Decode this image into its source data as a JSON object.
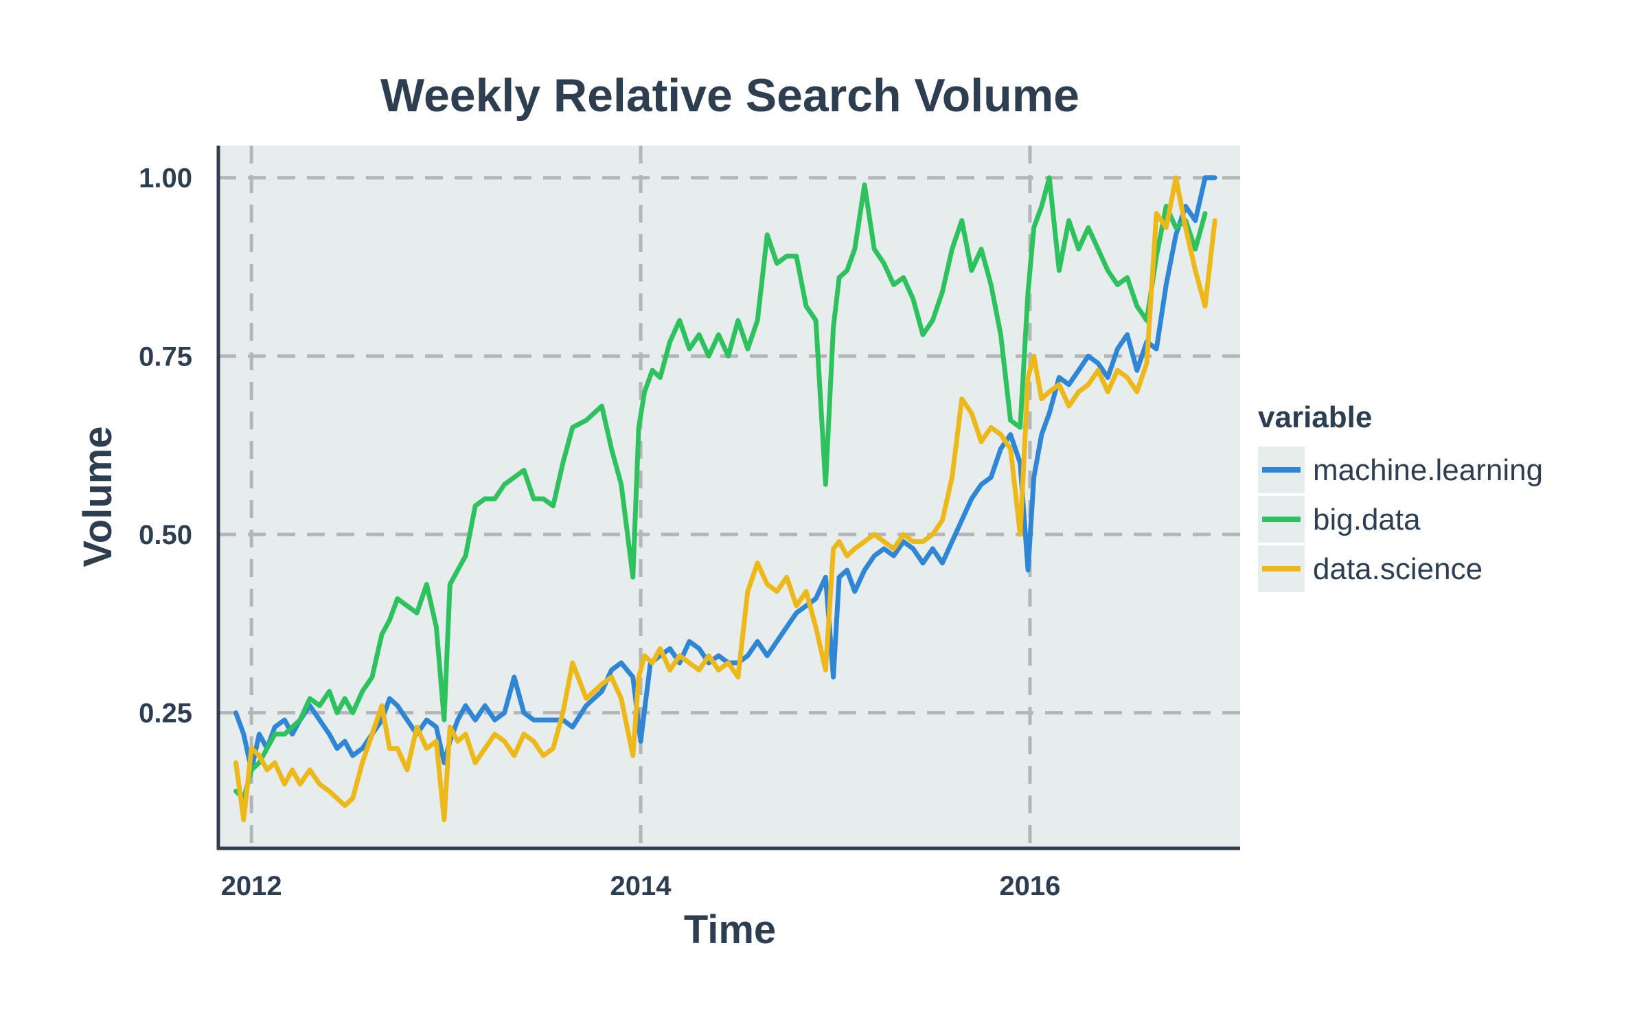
{
  "chart_data": {
    "type": "line",
    "title": "Weekly Relative Search Volume",
    "xlabel": "Time",
    "ylabel": "Volume",
    "xlim": [
      2011.83,
      2017.08
    ],
    "ylim": [
      0.06,
      1.045
    ],
    "x_ticks": [
      {
        "value": 2012,
        "label": "2012"
      },
      {
        "value": 2014,
        "label": "2014"
      },
      {
        "value": 2016,
        "label": "2016"
      }
    ],
    "y_ticks": [
      {
        "value": 0.25,
        "label": "0.25"
      },
      {
        "value": 0.5,
        "label": "0.50"
      },
      {
        "value": 0.75,
        "label": "0.75"
      },
      {
        "value": 1.0,
        "label": "1.00"
      }
    ],
    "grid": true,
    "legend": {
      "title": "variable",
      "position": "right"
    },
    "background": "#e7ecec",
    "series": [
      {
        "name": "machine.learning",
        "color": "#2e86d4",
        "x": [
          2011.92,
          2011.96,
          2012.0,
          2012.04,
          2012.08,
          2012.12,
          2012.17,
          2012.21,
          2012.25,
          2012.3,
          2012.35,
          2012.4,
          2012.44,
          2012.48,
          2012.52,
          2012.57,
          2012.62,
          2012.67,
          2012.71,
          2012.75,
          2012.8,
          2012.85,
          2012.9,
          2012.95,
          2012.99,
          2013.02,
          2013.06,
          2013.1,
          2013.15,
          2013.2,
          2013.25,
          2013.3,
          2013.35,
          2013.4,
          2013.45,
          2013.5,
          2013.55,
          2013.6,
          2013.65,
          2013.72,
          2013.8,
          2013.85,
          2013.9,
          2013.96,
          2014.0,
          2014.05,
          2014.1,
          2014.15,
          2014.2,
          2014.25,
          2014.3,
          2014.35,
          2014.4,
          2014.45,
          2014.5,
          2014.55,
          2014.6,
          2014.65,
          2014.7,
          2014.75,
          2014.8,
          2014.85,
          2014.9,
          2014.95,
          2014.99,
          2015.02,
          2015.06,
          2015.1,
          2015.15,
          2015.2,
          2015.25,
          2015.3,
          2015.35,
          2015.4,
          2015.45,
          2015.5,
          2015.55,
          2015.6,
          2015.65,
          2015.7,
          2015.75,
          2015.8,
          2015.85,
          2015.9,
          2015.95,
          2015.99,
          2016.02,
          2016.06,
          2016.1,
          2016.15,
          2016.2,
          2016.25,
          2016.3,
          2016.35,
          2016.4,
          2016.45,
          2016.5,
          2016.55,
          2016.6,
          2016.65,
          2016.7,
          2016.75,
          2016.8,
          2016.85,
          2016.9,
          2016.95
        ],
        "values": [
          0.25,
          0.22,
          0.17,
          0.22,
          0.2,
          0.23,
          0.24,
          0.22,
          0.24,
          0.26,
          0.24,
          0.22,
          0.2,
          0.21,
          0.19,
          0.2,
          0.22,
          0.24,
          0.27,
          0.26,
          0.24,
          0.22,
          0.24,
          0.23,
          0.18,
          0.21,
          0.24,
          0.26,
          0.24,
          0.26,
          0.24,
          0.25,
          0.3,
          0.25,
          0.24,
          0.24,
          0.24,
          0.24,
          0.23,
          0.26,
          0.28,
          0.31,
          0.32,
          0.3,
          0.21,
          0.32,
          0.33,
          0.34,
          0.32,
          0.35,
          0.34,
          0.32,
          0.33,
          0.32,
          0.32,
          0.33,
          0.35,
          0.33,
          0.35,
          0.37,
          0.39,
          0.4,
          0.41,
          0.44,
          0.3,
          0.44,
          0.45,
          0.42,
          0.45,
          0.47,
          0.48,
          0.47,
          0.49,
          0.48,
          0.46,
          0.48,
          0.46,
          0.49,
          0.52,
          0.55,
          0.57,
          0.58,
          0.62,
          0.64,
          0.6,
          0.45,
          0.58,
          0.64,
          0.67,
          0.72,
          0.71,
          0.73,
          0.75,
          0.74,
          0.72,
          0.76,
          0.78,
          0.73,
          0.77,
          0.76,
          0.85,
          0.92,
          0.96,
          0.94,
          1.0,
          1.0
        ]
      },
      {
        "name": "big.data",
        "color": "#2ec25e",
        "x": [
          2011.92,
          2011.96,
          2012.0,
          2012.04,
          2012.08,
          2012.12,
          2012.17,
          2012.21,
          2012.25,
          2012.3,
          2012.35,
          2012.4,
          2012.44,
          2012.48,
          2012.52,
          2012.57,
          2012.62,
          2012.67,
          2012.71,
          2012.75,
          2012.8,
          2012.85,
          2012.9,
          2012.95,
          2012.99,
          2013.02,
          2013.06,
          2013.1,
          2013.15,
          2013.2,
          2013.25,
          2013.3,
          2013.35,
          2013.4,
          2013.45,
          2013.5,
          2013.55,
          2013.6,
          2013.65,
          2013.72,
          2013.8,
          2013.85,
          2013.9,
          2013.96,
          2013.99,
          2014.02,
          2014.06,
          2014.1,
          2014.15,
          2014.2,
          2014.25,
          2014.3,
          2014.35,
          2014.4,
          2014.45,
          2014.5,
          2014.55,
          2014.6,
          2014.65,
          2014.7,
          2014.75,
          2014.8,
          2014.85,
          2014.9,
          2014.95,
          2014.99,
          2015.02,
          2015.06,
          2015.1,
          2015.15,
          2015.2,
          2015.25,
          2015.3,
          2015.35,
          2015.4,
          2015.45,
          2015.5,
          2015.55,
          2015.6,
          2015.65,
          2015.7,
          2015.75,
          2015.8,
          2015.85,
          2015.9,
          2015.95,
          2015.99,
          2016.02,
          2016.06,
          2016.1,
          2016.15,
          2016.2,
          2016.25,
          2016.3,
          2016.35,
          2016.4,
          2016.45,
          2016.5,
          2016.55,
          2016.6,
          2016.65,
          2016.7,
          2016.75,
          2016.8,
          2016.85,
          2016.9
        ],
        "values": [
          0.14,
          0.13,
          0.17,
          0.18,
          0.2,
          0.22,
          0.22,
          0.23,
          0.24,
          0.27,
          0.26,
          0.28,
          0.25,
          0.27,
          0.25,
          0.28,
          0.3,
          0.36,
          0.38,
          0.41,
          0.4,
          0.39,
          0.43,
          0.37,
          0.24,
          0.43,
          0.45,
          0.47,
          0.54,
          0.55,
          0.55,
          0.57,
          0.58,
          0.59,
          0.55,
          0.55,
          0.54,
          0.6,
          0.65,
          0.66,
          0.68,
          0.62,
          0.57,
          0.44,
          0.65,
          0.7,
          0.73,
          0.72,
          0.77,
          0.8,
          0.76,
          0.78,
          0.75,
          0.78,
          0.75,
          0.8,
          0.76,
          0.8,
          0.92,
          0.88,
          0.89,
          0.89,
          0.82,
          0.8,
          0.57,
          0.79,
          0.86,
          0.87,
          0.9,
          0.99,
          0.9,
          0.88,
          0.85,
          0.86,
          0.83,
          0.78,
          0.8,
          0.84,
          0.9,
          0.94,
          0.87,
          0.9,
          0.85,
          0.78,
          0.66,
          0.65,
          0.84,
          0.93,
          0.96,
          1.0,
          0.87,
          0.94,
          0.9,
          0.93,
          0.9,
          0.87,
          0.85,
          0.86,
          0.82,
          0.8,
          0.89,
          0.96,
          0.93,
          0.94,
          0.9,
          0.95
        ]
      },
      {
        "name": "data.science",
        "color": "#ecb81a",
        "x": [
          2011.92,
          2011.96,
          2012.0,
          2012.04,
          2012.08,
          2012.12,
          2012.17,
          2012.21,
          2012.25,
          2012.3,
          2012.35,
          2012.4,
          2012.44,
          2012.48,
          2012.52,
          2012.57,
          2012.62,
          2012.67,
          2012.71,
          2012.75,
          2012.8,
          2012.85,
          2012.9,
          2012.95,
          2012.99,
          2013.02,
          2013.06,
          2013.1,
          2013.15,
          2013.2,
          2013.25,
          2013.3,
          2013.35,
          2013.4,
          2013.45,
          2013.5,
          2013.55,
          2013.6,
          2013.65,
          2013.72,
          2013.8,
          2013.85,
          2013.9,
          2013.96,
          2013.99,
          2014.02,
          2014.06,
          2014.1,
          2014.15,
          2014.2,
          2014.25,
          2014.3,
          2014.35,
          2014.4,
          2014.45,
          2014.5,
          2014.55,
          2014.6,
          2014.65,
          2014.7,
          2014.75,
          2014.8,
          2014.85,
          2014.9,
          2014.95,
          2014.99,
          2015.02,
          2015.06,
          2015.1,
          2015.15,
          2015.2,
          2015.25,
          2015.3,
          2015.35,
          2015.4,
          2015.45,
          2015.5,
          2015.55,
          2015.6,
          2015.65,
          2015.7,
          2015.75,
          2015.8,
          2015.85,
          2015.9,
          2015.95,
          2015.99,
          2016.02,
          2016.06,
          2016.1,
          2016.15,
          2016.2,
          2016.25,
          2016.3,
          2016.35,
          2016.4,
          2016.45,
          2016.5,
          2016.55,
          2016.6,
          2016.65,
          2016.7,
          2016.75,
          2016.8,
          2016.85,
          2016.9,
          2016.95
        ],
        "values": [
          0.18,
          0.1,
          0.2,
          0.19,
          0.17,
          0.18,
          0.15,
          0.17,
          0.15,
          0.17,
          0.15,
          0.14,
          0.13,
          0.12,
          0.13,
          0.18,
          0.22,
          0.26,
          0.2,
          0.2,
          0.17,
          0.23,
          0.2,
          0.21,
          0.1,
          0.23,
          0.21,
          0.22,
          0.18,
          0.2,
          0.22,
          0.21,
          0.19,
          0.22,
          0.21,
          0.19,
          0.2,
          0.25,
          0.32,
          0.27,
          0.29,
          0.3,
          0.27,
          0.19,
          0.3,
          0.33,
          0.32,
          0.34,
          0.31,
          0.33,
          0.32,
          0.31,
          0.33,
          0.31,
          0.32,
          0.3,
          0.42,
          0.46,
          0.43,
          0.42,
          0.44,
          0.4,
          0.42,
          0.37,
          0.31,
          0.48,
          0.49,
          0.47,
          0.48,
          0.49,
          0.5,
          0.49,
          0.48,
          0.5,
          0.49,
          0.49,
          0.5,
          0.52,
          0.58,
          0.69,
          0.67,
          0.63,
          0.65,
          0.64,
          0.62,
          0.5,
          0.72,
          0.75,
          0.69,
          0.7,
          0.71,
          0.68,
          0.7,
          0.71,
          0.73,
          0.7,
          0.73,
          0.72,
          0.7,
          0.74,
          0.95,
          0.93,
          1.0,
          0.93,
          0.87,
          0.82,
          0.94
        ]
      }
    ]
  }
}
